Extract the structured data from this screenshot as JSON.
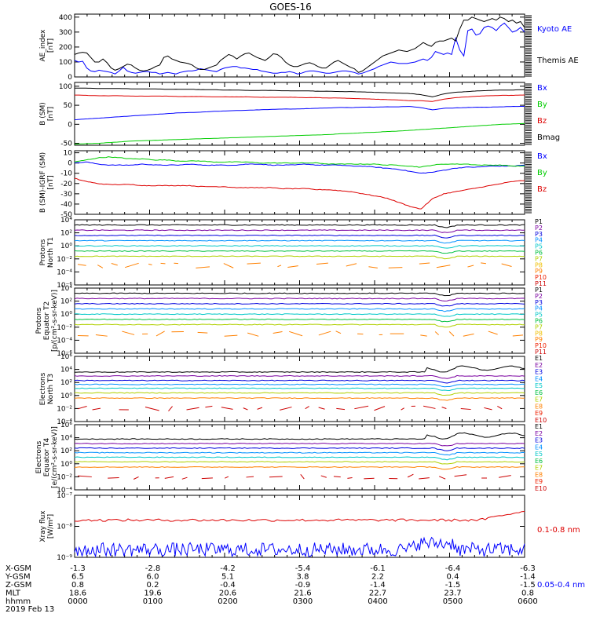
{
  "title": "GOES-16",
  "colors": {
    "black": "#000000",
    "blue": "#0000ff",
    "green": "#00cc00",
    "red": "#dd0000",
    "p1": "#000000",
    "p2": "#7a00a0",
    "p3": "#0000dd",
    "p4": "#0090ff",
    "p5": "#00c8c8",
    "p6": "#00c040",
    "p7": "#b0d000",
    "p8": "#f0c000",
    "p9": "#ff8000",
    "p10": "#ee2000",
    "p11": "#cc0000"
  },
  "chart_data": [
    {
      "type": "line",
      "id": "ae",
      "ylabel": [
        "AE_index",
        "[nT]"
      ],
      "ylim": [
        0,
        420
      ],
      "yticks": [
        "400",
        "300",
        "200",
        "100",
        "0"
      ],
      "yticks_values": [
        400,
        300,
        200,
        100,
        0
      ],
      "series": [
        {
          "name": "Kyoto AE",
          "color": "blue",
          "values": [
            110,
            100,
            105,
            60,
            40,
            35,
            45,
            40,
            35,
            30,
            20,
            40,
            65,
            40,
            30,
            25,
            30,
            35,
            35,
            30,
            30,
            20,
            25,
            30,
            25,
            20,
            30,
            35,
            40,
            40,
            45,
            55,
            50,
            45,
            40,
            35,
            50,
            60,
            65,
            70,
            70,
            60,
            60,
            55,
            50,
            50,
            40,
            35,
            30,
            25,
            25,
            30,
            30,
            35,
            30,
            20,
            25,
            35,
            40,
            40,
            35,
            30,
            25,
            25,
            30,
            35,
            40,
            40,
            35,
            30,
            20,
            25,
            35,
            45,
            55,
            70,
            80,
            90,
            100,
            95,
            90,
            90,
            90,
            95,
            100,
            110,
            120,
            110,
            130,
            170,
            160,
            150,
            160,
            150,
            260,
            180,
            140,
            310,
            320,
            280,
            290,
            330,
            340,
            330,
            310,
            340,
            360,
            330,
            300,
            310,
            330,
            300
          ]
        },
        {
          "name": "Themis AE",
          "color": "black",
          "values": [
            150,
            160,
            165,
            160,
            130,
            100,
            100,
            120,
            95,
            60,
            45,
            55,
            70,
            85,
            80,
            60,
            45,
            40,
            45,
            55,
            70,
            80,
            130,
            140,
            120,
            110,
            100,
            95,
            90,
            80,
            60,
            50,
            50,
            60,
            70,
            80,
            110,
            130,
            150,
            140,
            120,
            140,
            155,
            160,
            145,
            130,
            120,
            110,
            130,
            155,
            150,
            130,
            100,
            80,
            70,
            70,
            80,
            90,
            95,
            85,
            70,
            60,
            60,
            80,
            100,
            110,
            95,
            80,
            65,
            55,
            30,
            40,
            60,
            80,
            100,
            120,
            140,
            150,
            160,
            170,
            180,
            175,
            170,
            180,
            190,
            210,
            230,
            215,
            205,
            230,
            240,
            240,
            250,
            260,
            240,
            320,
            380,
            380,
            400,
            390,
            380,
            370,
            380,
            390,
            380,
            400,
            390,
            370,
            380,
            360,
            370,
            330
          ]
        }
      ]
    },
    {
      "type": "line",
      "id": "b",
      "ylabel": [
        "B (SM)",
        "[nT]"
      ],
      "ylim": [
        -55,
        110
      ],
      "yticks": [
        "100",
        "50",
        "0",
        "-50"
      ],
      "yticks_values": [
        100,
        50,
        0,
        -50
      ],
      "series": [
        {
          "name": "Bx",
          "color": "blue",
          "values": [
            12,
            14,
            16,
            18,
            20,
            22,
            24,
            26,
            28,
            30,
            31,
            32,
            34,
            35,
            36,
            37,
            38,
            39,
            40,
            40,
            41,
            42,
            43,
            44,
            44,
            45,
            45,
            46,
            46,
            47,
            44,
            38,
            42,
            43,
            44,
            45,
            45,
            46,
            47,
            47
          ]
        },
        {
          "name": "By",
          "color": "green",
          "values": [
            -52,
            -51,
            -50,
            -48,
            -46,
            -44,
            -43,
            -42,
            -41,
            -40,
            -39,
            -38,
            -37,
            -36,
            -35,
            -34,
            -33,
            -32,
            -31,
            -30,
            -29,
            -28,
            -27,
            -25,
            -24,
            -22,
            -21,
            -19,
            -18,
            -16,
            -14,
            -12,
            -10,
            -8,
            -6,
            -4,
            -2,
            0,
            1,
            2
          ]
        },
        {
          "name": "Bz",
          "color": "red",
          "values": [
            77,
            76,
            75,
            75,
            75,
            74,
            74,
            74,
            74,
            73,
            73,
            73,
            72,
            72,
            72,
            72,
            71,
            71,
            71,
            71,
            70,
            70,
            69,
            69,
            68,
            67,
            66,
            65,
            64,
            62,
            62,
            60,
            66,
            70,
            72,
            74,
            75,
            76,
            76,
            77
          ]
        },
        {
          "name": "Bmag",
          "color": "black",
          "values": [
            95,
            95,
            94,
            94,
            94,
            93,
            93,
            93,
            92,
            92,
            92,
            91,
            91,
            90,
            90,
            89,
            89,
            89,
            88,
            88,
            88,
            87,
            87,
            86,
            86,
            85,
            84,
            83,
            82,
            81,
            78,
            72,
            80,
            84,
            86,
            88,
            89,
            90,
            90,
            91
          ]
        }
      ]
    },
    {
      "type": "line",
      "id": "bigrf",
      "ylabel": [
        "B (SM)-IGRF (SM)",
        "[nT]"
      ],
      "ylim": [
        -50,
        12
      ],
      "yticks": [
        "10",
        "0",
        "-10",
        "-20",
        "-30",
        "-40",
        "-50"
      ],
      "yticks_values": [
        10,
        0,
        -10,
        -20,
        -30,
        -40,
        -50
      ],
      "series": [
        {
          "name": "Bx",
          "color": "blue",
          "values": [
            0,
            1,
            -1,
            -2,
            -2,
            -2,
            -1,
            -2,
            -2,
            -2,
            -1,
            -2,
            -2,
            -2,
            -2,
            -1,
            -1,
            -2,
            -2,
            -2,
            -1,
            -2,
            -2,
            -2,
            -3,
            -3,
            -4,
            -5,
            -6,
            -8,
            -10,
            -9,
            -7,
            -5,
            -4,
            -4,
            -3,
            -3,
            -3,
            -2
          ]
        },
        {
          "name": "By",
          "color": "green",
          "values": [
            1,
            3,
            5,
            6,
            5,
            4,
            4,
            3,
            3,
            2,
            2,
            2,
            1,
            1,
            1,
            1,
            0,
            0,
            0,
            0,
            0,
            0,
            -1,
            -1,
            -1,
            -1,
            -1,
            -2,
            -2,
            -3,
            -4,
            -2,
            -1,
            -1,
            -1,
            -2,
            -2,
            -2,
            -3,
            -3
          ]
        },
        {
          "name": "Bz",
          "color": "red",
          "values": [
            -15,
            -18,
            -20,
            -21,
            -21,
            -21,
            -22,
            -22,
            -22,
            -22,
            -22,
            -23,
            -23,
            -23,
            -24,
            -24,
            -24,
            -24,
            -25,
            -25,
            -25,
            -26,
            -26,
            -27,
            -28,
            -30,
            -32,
            -34,
            -38,
            -42,
            -45,
            -35,
            -30,
            -28,
            -26,
            -24,
            -22,
            -20,
            -18,
            -17
          ]
        }
      ]
    },
    {
      "type": "line",
      "id": "pnorth",
      "ylabel": [
        "Protons",
        "North T1"
      ],
      "ylog": true,
      "ylim_exp": [
        -6,
        4
      ],
      "yticks": [
        "10⁴",
        "10²",
        "10⁰",
        "10⁻²",
        "10⁻⁴",
        "10⁻⁶"
      ],
      "yticks_exp": [
        4,
        2,
        0,
        -2,
        -4,
        -6
      ],
      "legend": [
        "P1",
        "P2",
        "P3",
        "P4",
        "P5",
        "P6",
        "P7",
        "P8",
        "P9",
        "P10",
        "P11"
      ],
      "levels_exp": [
        3.2,
        2.4,
        1.6,
        0.8,
        0.0,
        -0.8,
        -1.6,
        -3.0
      ],
      "level_colors": [
        "p1",
        "p2",
        "p3",
        "p4",
        "p5",
        "p6",
        "p7",
        "p9"
      ]
    },
    {
      "type": "line",
      "id": "pequator",
      "ylabel": [
        "Protons",
        "Equator T2",
        "[p/(cm²-s-sr-keV)]"
      ],
      "ylog": true,
      "ylim_exp": [
        -6,
        4
      ],
      "yticks": [
        "10⁴",
        "10²",
        "10⁰",
        "10⁻²",
        "10⁻⁴",
        "10⁻⁶"
      ],
      "yticks_exp": [
        4,
        2,
        0,
        -2,
        -4,
        -6
      ],
      "legend": [
        "P1",
        "P2",
        "P3",
        "P4",
        "P5",
        "P6",
        "P7",
        "P8",
        "P9",
        "P10",
        "P11"
      ],
      "levels_exp": [
        3.2,
        2.4,
        1.6,
        0.8,
        0.0,
        -0.8,
        -1.6,
        -3.0
      ],
      "level_colors": [
        "p1",
        "p2",
        "p3",
        "p4",
        "p5",
        "p6",
        "p7",
        "p9"
      ]
    },
    {
      "type": "line",
      "id": "enorth",
      "ylabel": [
        "Electrons",
        "North T3"
      ],
      "ylog": true,
      "ylim_exp": [
        -4,
        6
      ],
      "yticks": [
        "10⁶",
        "10⁴",
        "10²",
        "10⁰",
        "10⁻²",
        "10⁻⁴"
      ],
      "yticks_exp": [
        6,
        4,
        2,
        0,
        -2,
        -4
      ],
      "legend": [
        "E1",
        "E2",
        "E3",
        "E4",
        "E5",
        "E6",
        "E7",
        "E8",
        "E9",
        "E10"
      ],
      "levels_exp": [
        3.6,
        3.0,
        2.3,
        1.7,
        1.1,
        0.4,
        -0.4,
        -2.0
      ],
      "level_colors": [
        "p1",
        "p2",
        "p3",
        "p4",
        "p5",
        "p7",
        "p9",
        "p11"
      ]
    },
    {
      "type": "line",
      "id": "eequator",
      "ylabel": [
        "Electrons",
        "Equator T4",
        "[e/(cm²-s-sr-keV)]"
      ],
      "ylog": true,
      "ylim_exp": [
        -4,
        6
      ],
      "yticks": [
        "10⁶",
        "10⁴",
        "10²",
        "10⁰",
        "10⁻²",
        "10⁻⁴"
      ],
      "yticks_exp": [
        6,
        4,
        2,
        0,
        -2,
        -4
      ],
      "legend": [
        "E1",
        "E2",
        "E3",
        "E4",
        "E5",
        "E6",
        "E7",
        "E8",
        "E9",
        "E10"
      ],
      "levels_exp": [
        3.8,
        3.1,
        2.4,
        1.7,
        1.0,
        0.3,
        -0.5,
        -2.0
      ],
      "level_colors": [
        "p1",
        "p2",
        "p3",
        "p4",
        "p5",
        "p7",
        "p9",
        "p11"
      ]
    },
    {
      "type": "line",
      "id": "xray",
      "ylabel": [
        "Xray flux",
        "[W/m²]"
      ],
      "ylog": true,
      "ylim_exp": [
        -9,
        -7
      ],
      "yticks": [
        "10⁻⁷",
        "10⁻⁸",
        "10⁻⁹"
      ],
      "yticks_exp": [
        -7,
        -8,
        -9
      ],
      "series": [
        {
          "name": "0.1-0.8 nm",
          "color": "red",
          "level_exp": -7.8
        },
        {
          "name": "0.05-0.4 nm",
          "color": "blue",
          "level_exp": -8.75
        }
      ]
    }
  ],
  "x_axis": {
    "rows": [
      {
        "label": "X-GSM",
        "values": [
          "-1.3",
          "-2.8",
          "-4.2",
          "-5.4",
          "-6.1",
          "-6.4",
          "-6.3"
        ]
      },
      {
        "label": "Y-GSM",
        "values": [
          "6.5",
          "6.0",
          "5.1",
          "3.8",
          "2.2",
          "0.4",
          "-1.4"
        ]
      },
      {
        "label": "Z-GSM",
        "values": [
          "0.8",
          "0.2",
          "-0.4",
          "-0.9",
          "-1.4",
          "-1.5",
          "-1.5"
        ]
      },
      {
        "label": "MLT",
        "values": [
          "18.6",
          "19.6",
          "20.6",
          "21.6",
          "22.7",
          "23.7",
          "0.8"
        ]
      },
      {
        "label": "hhmm",
        "values": [
          "0000",
          "0100",
          "0200",
          "0300",
          "0400",
          "0500",
          "0600"
        ]
      }
    ],
    "date": "2019 Feb 13"
  }
}
